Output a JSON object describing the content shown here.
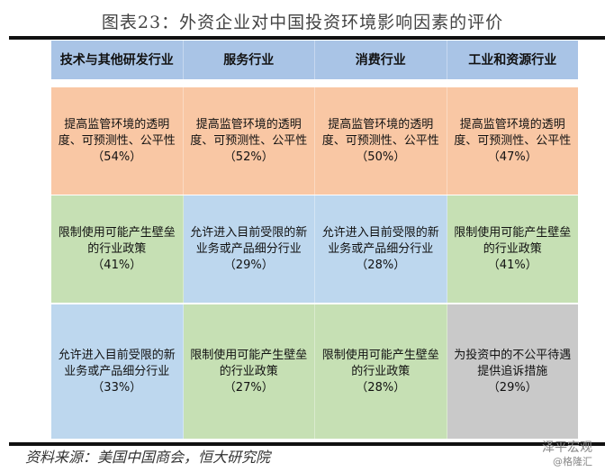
{
  "title": "图表23：外资企业对中国投资环境影响因素的评价",
  "headers": [
    "技术与其他研发行业",
    "服务行业",
    "消费行业",
    "工业和资源行业"
  ],
  "colors": {
    "header": "#a9c4e6",
    "orange": "#f9c7a4",
    "green": "#c6e0b4",
    "blue": "#bdd7ee",
    "gray": "#c9c9c9"
  },
  "rows": [
    [
      {
        "text": "提高监管环境的透明度、可预测性、公平性",
        "pct": "（54%）",
        "color": "orange"
      },
      {
        "text": "提高监管环境的透明度、可预测性、公平性",
        "pct": "（52%）",
        "color": "orange"
      },
      {
        "text": "提高监管环境的透明度、可预测性、公平性",
        "pct": "（50%）",
        "color": "orange"
      },
      {
        "text": "提高监管环境的透明度、可预测性、公平性",
        "pct": "（47%）",
        "color": "orange"
      }
    ],
    [
      {
        "text": "限制使用可能产生壁垒的行业政策",
        "pct": "（41%）",
        "color": "green"
      },
      {
        "text": "允许进入目前受限的新业务或产品细分行业",
        "pct": "（29%）",
        "color": "blue"
      },
      {
        "text": "允许进入目前受限的新业务或产品细分行业",
        "pct": "（28%）",
        "color": "blue"
      },
      {
        "text": "限制使用可能产生壁垒的行业政策",
        "pct": "（41%）",
        "color": "green"
      }
    ],
    [
      {
        "text": "允许进入目前受限的新业务或产品细分行业",
        "pct": "（33%）",
        "color": "blue"
      },
      {
        "text": "限制使用可能产生壁垒的行业政策",
        "pct": "（27%）",
        "color": "green"
      },
      {
        "text": "限制使用可能产生壁垒的行业政策",
        "pct": "（28%）",
        "color": "green"
      },
      {
        "text": "为投资中的不公平待遇提供追诉措施",
        "pct": "（29%）",
        "color": "gray"
      }
    ]
  ],
  "source": "资料来源：美国中国商会，恒大研究院",
  "watermark": {
    "line1": "泽平宏观",
    "line2": "@格隆汇"
  }
}
